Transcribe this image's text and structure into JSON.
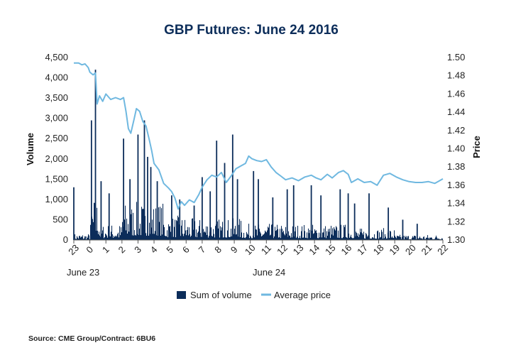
{
  "chart_data": {
    "type": "bar",
    "title": "GBP Futures: June 24 2016",
    "ylabel": "Volume",
    "y2label": "Price",
    "ylim": [
      0,
      4500
    ],
    "y2lim": [
      1.3,
      1.5
    ],
    "yticks": [
      "0",
      "500",
      "1,000",
      "1,500",
      "2,000",
      "2,500",
      "3,000",
      "3,500",
      "4,000",
      "4,500"
    ],
    "y2ticks": [
      "1.30",
      "1.32",
      "1.34",
      "1.36",
      "1.38",
      "1.40",
      "1.42",
      "1.44",
      "1.46",
      "1.48",
      "1.50"
    ],
    "xticks": [
      "23",
      "0",
      "1",
      "2",
      "3",
      "4",
      "5",
      "6",
      "7",
      "8",
      "9",
      "10",
      "11",
      "12",
      "13",
      "14",
      "15",
      "16",
      "17",
      "18",
      "19",
      "20",
      "21",
      "22"
    ],
    "date_labels": [
      "June 23",
      "June 24"
    ],
    "x_unit": "hour",
    "x_range": [
      23,
      46
    ],
    "grid": false,
    "legend_position": "bottom",
    "series": [
      {
        "name": "Sum of volume",
        "kind": "bar",
        "color": "#0c2d5a",
        "peaks": [
          {
            "hour": 23.0,
            "value": 1300
          },
          {
            "hour": 24.1,
            "value": 2950
          },
          {
            "hour": 24.35,
            "value": 4200
          },
          {
            "hour": 24.7,
            "value": 1450
          },
          {
            "hour": 25.2,
            "value": 1150
          },
          {
            "hour": 26.1,
            "value": 2500
          },
          {
            "hour": 26.5,
            "value": 1500
          },
          {
            "hour": 27.0,
            "value": 2600
          },
          {
            "hour": 27.4,
            "value": 2950
          },
          {
            "hour": 27.6,
            "value": 2050
          },
          {
            "hour": 27.8,
            "value": 1800
          },
          {
            "hour": 28.2,
            "value": 1450
          },
          {
            "hour": 29.1,
            "value": 1100
          },
          {
            "hour": 29.6,
            "value": 1000
          },
          {
            "hour": 30.5,
            "value": 850
          },
          {
            "hour": 31.0,
            "value": 1550
          },
          {
            "hour": 31.5,
            "value": 1200
          },
          {
            "hour": 31.9,
            "value": 2450
          },
          {
            "hour": 32.4,
            "value": 1900
          },
          {
            "hour": 32.9,
            "value": 2600
          },
          {
            "hour": 33.2,
            "value": 1500
          },
          {
            "hour": 34.2,
            "value": 1700
          },
          {
            "hour": 34.5,
            "value": 1500
          },
          {
            "hour": 35.4,
            "value": 1050
          },
          {
            "hour": 36.3,
            "value": 1250
          },
          {
            "hour": 36.7,
            "value": 1350
          },
          {
            "hour": 37.8,
            "value": 1350
          },
          {
            "hour": 38.4,
            "value": 1100
          },
          {
            "hour": 39.6,
            "value": 1250
          },
          {
            "hour": 40.1,
            "value": 1150
          },
          {
            "hour": 40.5,
            "value": 900
          },
          {
            "hour": 41.4,
            "value": 1150
          },
          {
            "hour": 42.6,
            "value": 800
          },
          {
            "hour": 43.5,
            "value": 500
          },
          {
            "hour": 44.4,
            "value": 400
          }
        ]
      },
      {
        "name": "Average price",
        "kind": "line",
        "color": "#6fb8e0",
        "points": [
          [
            23.0,
            1.494
          ],
          [
            23.3,
            1.494
          ],
          [
            23.5,
            1.492
          ],
          [
            23.7,
            1.493
          ],
          [
            23.9,
            1.489
          ],
          [
            24.0,
            1.484
          ],
          [
            24.2,
            1.481
          ],
          [
            24.35,
            1.483
          ],
          [
            24.45,
            1.449
          ],
          [
            24.6,
            1.458
          ],
          [
            24.8,
            1.452
          ],
          [
            25.0,
            1.46
          ],
          [
            25.3,
            1.454
          ],
          [
            25.6,
            1.456
          ],
          [
            25.9,
            1.454
          ],
          [
            26.1,
            1.456
          ],
          [
            26.25,
            1.441
          ],
          [
            26.4,
            1.422
          ],
          [
            26.55,
            1.417
          ],
          [
            26.75,
            1.432
          ],
          [
            26.9,
            1.444
          ],
          [
            27.1,
            1.441
          ],
          [
            27.3,
            1.43
          ],
          [
            27.5,
            1.425
          ],
          [
            27.7,
            1.41
          ],
          [
            27.85,
            1.398
          ],
          [
            28.0,
            1.384
          ],
          [
            28.3,
            1.377
          ],
          [
            28.6,
            1.362
          ],
          [
            28.9,
            1.357
          ],
          [
            29.1,
            1.353
          ],
          [
            29.3,
            1.346
          ],
          [
            29.5,
            1.334
          ],
          [
            29.7,
            1.342
          ],
          [
            29.9,
            1.338
          ],
          [
            30.2,
            1.344
          ],
          [
            30.5,
            1.341
          ],
          [
            30.8,
            1.35
          ],
          [
            31.0,
            1.358
          ],
          [
            31.3,
            1.366
          ],
          [
            31.6,
            1.371
          ],
          [
            31.9,
            1.369
          ],
          [
            32.2,
            1.374
          ],
          [
            32.5,
            1.363
          ],
          [
            32.8,
            1.37
          ],
          [
            33.1,
            1.378
          ],
          [
            33.4,
            1.381
          ],
          [
            33.7,
            1.384
          ],
          [
            33.9,
            1.392
          ],
          [
            34.1,
            1.389
          ],
          [
            34.4,
            1.387
          ],
          [
            34.7,
            1.386
          ],
          [
            35.0,
            1.388
          ],
          [
            35.3,
            1.38
          ],
          [
            35.6,
            1.374
          ],
          [
            35.9,
            1.37
          ],
          [
            36.2,
            1.366
          ],
          [
            36.6,
            1.368
          ],
          [
            37.0,
            1.365
          ],
          [
            37.4,
            1.369
          ],
          [
            37.8,
            1.371
          ],
          [
            38.1,
            1.368
          ],
          [
            38.4,
            1.366
          ],
          [
            38.8,
            1.372
          ],
          [
            39.1,
            1.368
          ],
          [
            39.5,
            1.374
          ],
          [
            39.8,
            1.376
          ],
          [
            40.1,
            1.372
          ],
          [
            40.3,
            1.363
          ],
          [
            40.7,
            1.367
          ],
          [
            41.1,
            1.363
          ],
          [
            41.5,
            1.364
          ],
          [
            41.9,
            1.36
          ],
          [
            42.3,
            1.371
          ],
          [
            42.7,
            1.373
          ],
          [
            43.1,
            1.369
          ],
          [
            43.5,
            1.366
          ],
          [
            43.9,
            1.364
          ],
          [
            44.3,
            1.363
          ],
          [
            44.7,
            1.363
          ],
          [
            45.1,
            1.364
          ],
          [
            45.5,
            1.362
          ],
          [
            46.0,
            1.367
          ]
        ]
      }
    ]
  },
  "footer": {
    "source": "Source: CME Group/Contract: 6BU6"
  }
}
